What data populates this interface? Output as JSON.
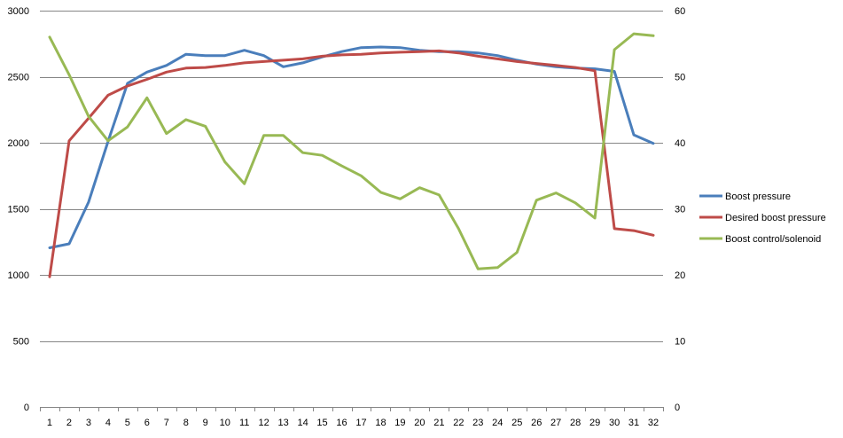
{
  "chart_data": {
    "type": "line",
    "title": "",
    "xlabel": "",
    "ylabel": "",
    "y2label": "",
    "categories": [
      "1",
      "2",
      "3",
      "4",
      "5",
      "6",
      "7",
      "8",
      "9",
      "10",
      "11",
      "12",
      "13",
      "14",
      "15",
      "16",
      "17",
      "18",
      "19",
      "20",
      "21",
      "22",
      "23",
      "24",
      "25",
      "26",
      "27",
      "28",
      "29",
      "30",
      "31",
      "32"
    ],
    "ylim": [
      0,
      3000
    ],
    "yticks": [
      0,
      500,
      1000,
      1500,
      2000,
      2500,
      3000
    ],
    "y2lim": [
      0,
      60
    ],
    "y2ticks": [
      0,
      10,
      20,
      30,
      40,
      50,
      60
    ],
    "grid": true,
    "legend_position": "right",
    "series": [
      {
        "name": "Boost pressure",
        "axis": "left",
        "color": "#4a7ebb",
        "values": [
          1205,
          1235,
          1550,
          2010,
          2450,
          2535,
          2585,
          2670,
          2660,
          2660,
          2700,
          2660,
          2575,
          2605,
          2650,
          2690,
          2720,
          2725,
          2720,
          2700,
          2690,
          2690,
          2680,
          2660,
          2625,
          2595,
          2575,
          2565,
          2560,
          2540,
          2060,
          1995
        ]
      },
      {
        "name": "Desired boost pressure",
        "axis": "left",
        "color": "#be4b48",
        "values": [
          985,
          2015,
          2185,
          2360,
          2430,
          2480,
          2535,
          2565,
          2570,
          2585,
          2605,
          2615,
          2625,
          2635,
          2655,
          2665,
          2670,
          2680,
          2685,
          2690,
          2695,
          2680,
          2655,
          2635,
          2615,
          2600,
          2585,
          2570,
          2545,
          1350,
          1335,
          1300
        ]
      },
      {
        "name": "Boost control/solenoid",
        "axis": "right",
        "color": "#98b954",
        "values": [
          56.0,
          50.3,
          44.0,
          40.3,
          42.4,
          46.8,
          41.4,
          43.5,
          42.5,
          37.1,
          33.8,
          41.1,
          41.1,
          38.5,
          38.1,
          36.5,
          35.0,
          32.5,
          31.5,
          33.2,
          32.1,
          27.0,
          20.9,
          21.1,
          23.4,
          31.3,
          32.4,
          30.9,
          28.6,
          54.1,
          56.5,
          56.2
        ]
      }
    ]
  }
}
